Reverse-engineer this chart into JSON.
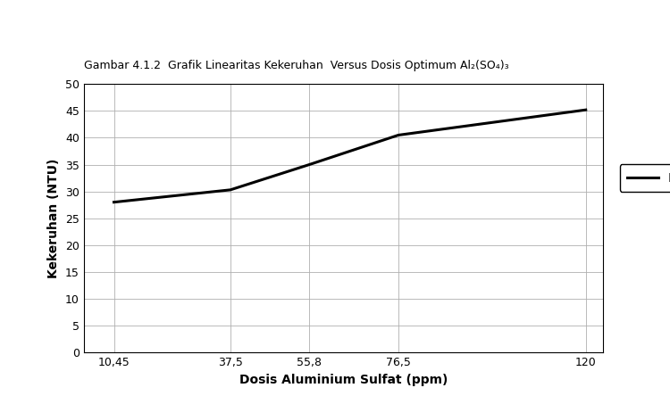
{
  "x_labels": [
    "10,45",
    "37,5",
    "55,8",
    "76,5",
    "120"
  ],
  "x_values": [
    10.45,
    37.5,
    55.8,
    76.5,
    120
  ],
  "y_values": [
    28.0,
    30.3,
    35.0,
    40.5,
    45.2
  ],
  "y_ticks": [
    0,
    5,
    10,
    15,
    20,
    25,
    30,
    35,
    40,
    45,
    50
  ],
  "ylim": [
    0,
    50
  ],
  "line_color": "#000000",
  "line_width": 2.2,
  "xlabel": "Dosis Aluminium Sulfat (ppm)",
  "ylabel": "Kekeruhan (NTU)",
  "legend_label": "Kekeruhan (NTU)",
  "background_color": "#ffffff",
  "grid_color": "#b0b0b0",
  "caption": "Gambar 4.1.2  Grafik Linearitas Kekeruhan  Versus Dosis Optimum Al₂(SO₄)₃",
  "xlabel_fontsize": 10,
  "ylabel_fontsize": 10,
  "tick_fontsize": 9,
  "legend_fontsize": 10,
  "caption_fontsize": 9
}
